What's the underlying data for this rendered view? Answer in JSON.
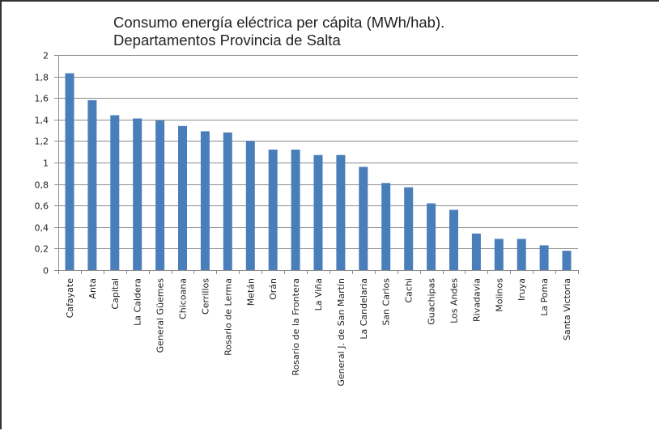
{
  "chart_data": {
    "type": "bar",
    "title": [
      "Consumo energía eléctrica per cápita (MWh/hab).",
      "Departamentos Provincia de Salta"
    ],
    "xlabel": "",
    "ylabel": "",
    "ylim": [
      0,
      2
    ],
    "yticks": [
      0,
      0.2,
      0.4,
      0.6,
      0.8,
      1,
      1.2,
      1.4,
      1.6,
      1.8,
      2
    ],
    "ytick_labels": [
      "0",
      "0,2",
      "0,4",
      "0,6",
      "0,8",
      "1",
      "1,2",
      "1,4",
      "1,6",
      "1,8",
      "2"
    ],
    "grid": true,
    "legend": "none",
    "bar_color": "#4a7ebb",
    "categories": [
      "Cafayate",
      "Anta",
      "Capital",
      "La Caldera",
      "General Güemes",
      "Chicoana",
      "Cerrillos",
      "Rosario de Lerma",
      "Metán",
      "Orán",
      "Rosario de la Frontera",
      "La Viña",
      "General J. de San Martín",
      "La Candelaria",
      "San Carlos",
      "Cachi",
      "Guachipas",
      "Los Andes",
      "Rivadavia",
      "Molinos",
      "Iruya",
      "La Poma",
      "Santa Victoria"
    ],
    "values": [
      1.83,
      1.58,
      1.44,
      1.41,
      1.39,
      1.34,
      1.29,
      1.28,
      1.2,
      1.12,
      1.12,
      1.07,
      1.07,
      0.96,
      0.81,
      0.77,
      0.62,
      0.56,
      0.34,
      0.29,
      0.29,
      0.23,
      0.18
    ]
  }
}
